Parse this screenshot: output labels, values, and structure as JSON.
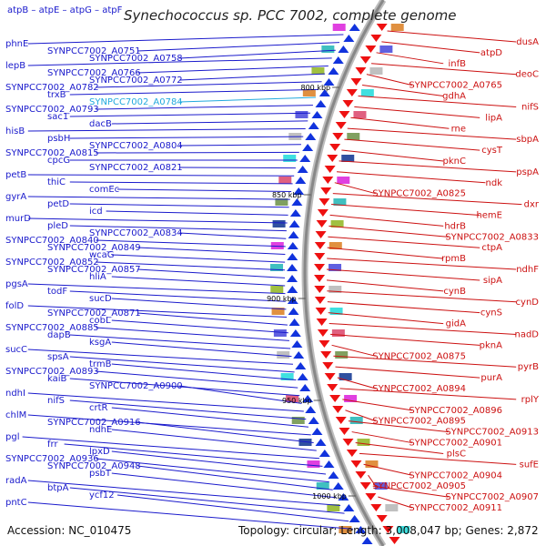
{
  "title": "Synechococcus sp. PCC 7002, complete genome",
  "top_left_genes": "atpB – atpE – atpG – atpF",
  "footer": {
    "accession": "Accession: NC_010475",
    "summary": "Topology: circular; Length: 3,008,047 bp; Genes: 2,872"
  },
  "ticks": [
    "800 kbp",
    "850 kbp",
    "900 kbp",
    "950 kbp",
    "1000 kbp"
  ],
  "left_genes": [
    "phnE",
    "SYNPCC7002_A0751",
    "SYNPCC7002_A0758",
    "lepB",
    "SYNPCC7002_A0766",
    "SYNPCC7002_A0772",
    "SYNPCC7002_A0782",
    "trxB",
    "SYNPCC7002_A0784",
    "SYNPCC7002_A0793",
    "sac1",
    "dacB",
    "hisB",
    "psbH",
    "SYNPCC7002_A0804",
    "SYNPCC7002_A0815",
    "cpcG",
    "SYNPCC7002_A0821",
    "petB",
    "thiC",
    "comEc",
    "gyrA",
    "petD",
    "icd",
    "murD",
    "pleD",
    "SYNPCC7002_A0834",
    "SYNPCC7002_A0840",
    "SYNPCC7002_A0849",
    "wcaG",
    "SYNPCC7002_A0852",
    "SYNPCC7002_A0857",
    "hliA",
    "pgsA",
    "todF",
    "sucD",
    "folD",
    "SYNPCC7002_A0871",
    "cobL",
    "SYNPCC7002_A0885",
    "dapB",
    "ksgA",
    "sucC",
    "spsA",
    "trmB",
    "SYNPCC7002_A0893",
    "kaiB",
    "SYNPCC7002_A0900",
    "ndhI",
    "nifS",
    "crtR",
    "chlM",
    "SYNPCC7002_A0916",
    "ndhE",
    "pgl",
    "frr",
    "lpxD",
    "SYNPCC7002_A0936",
    "SYNPCC7002_A0948",
    "psbT",
    "radA",
    "btpA",
    "ycf12",
    "pntC"
  ],
  "right_genes": [
    "dusA",
    "atpD",
    "infB",
    "deoC",
    "SYNPCC7002_A0765",
    "gdhA",
    "nifS",
    "lipA",
    "rne",
    "sbpA",
    "cysT",
    "pknC",
    "pspA",
    "ndk",
    "SYNPCC7002_A0825",
    "dxr",
    "hemE",
    "hdrB",
    "SYNPCC7002_A0833",
    "ctpA",
    "rpmB",
    "ndhF",
    "sipA",
    "cynB",
    "cynD",
    "cynS",
    "gidA",
    "nadD",
    "pknA",
    "SYNPCC7002_A0875",
    "pyrB",
    "purA",
    "SYNPCC7002_A0894",
    "rplY",
    "SYNPCC7002_A0896",
    "SYNPCC7002_A0895",
    "SYNPCC7002_A0913",
    "SYNPCC7002_A0901",
    "plsC",
    "sufE",
    "SYNPCC7002_A0904",
    "SYNPCC7002_A0905",
    "SYNPCC7002_A0907",
    "SYNPCC7002_A0911"
  ],
  "colors": {
    "left": "#1a1acc",
    "right": "#cc1111",
    "highlight": "#22aadd",
    "backbone": "#888888"
  }
}
